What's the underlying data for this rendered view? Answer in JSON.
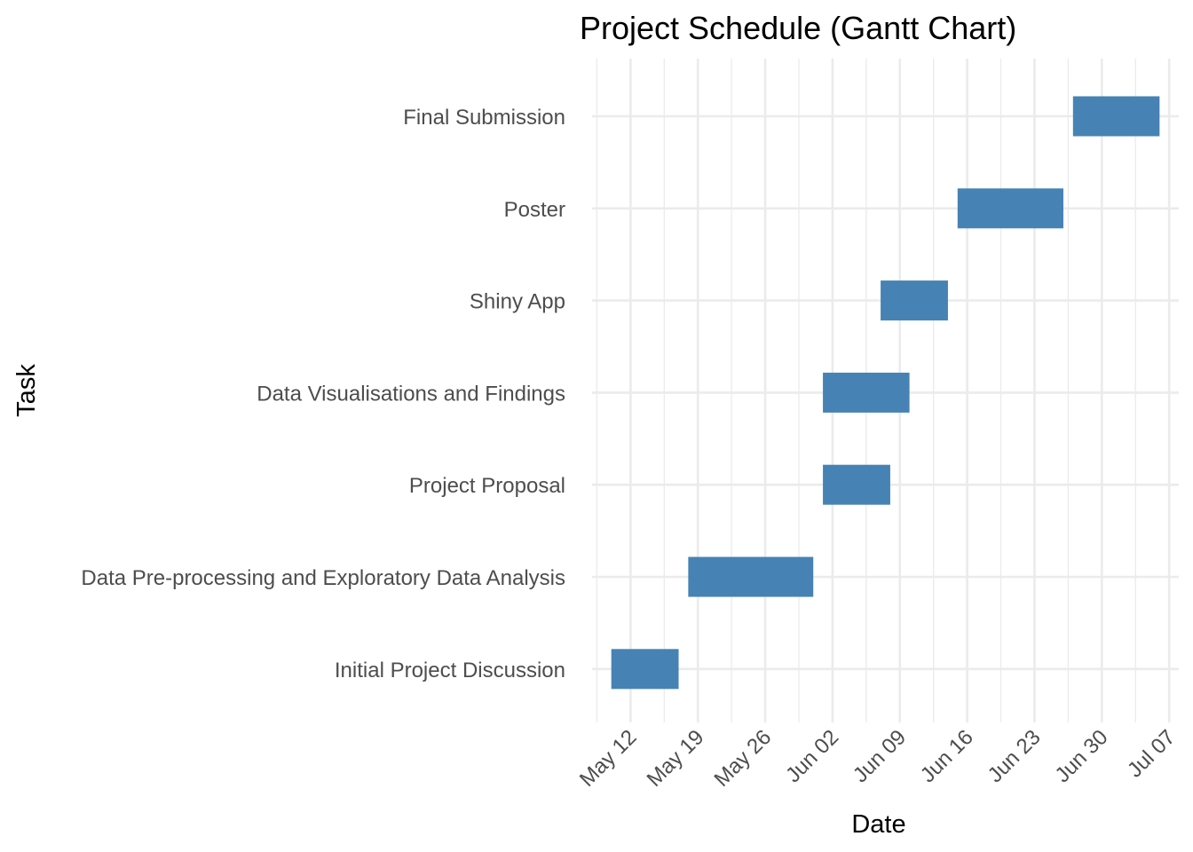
{
  "chart_data": {
    "type": "gantt",
    "title": "Project Schedule (Gantt Chart)",
    "xlabel": "Date",
    "ylabel": "Task",
    "x_axis_type": "date",
    "xlim": [
      "2024-05-08",
      "2024-07-08"
    ],
    "x_ticks": [
      {
        "date": "2024-05-12",
        "label": "May 12"
      },
      {
        "date": "2024-05-19",
        "label": "May 19"
      },
      {
        "date": "2024-05-26",
        "label": "May 26"
      },
      {
        "date": "2024-06-02",
        "label": "Jun 02"
      },
      {
        "date": "2024-06-09",
        "label": "Jun 09"
      },
      {
        "date": "2024-06-16",
        "label": "Jun 16"
      },
      {
        "date": "2024-06-23",
        "label": "Jun 23"
      },
      {
        "date": "2024-06-30",
        "label": "Jun 30"
      },
      {
        "date": "2024-07-07",
        "label": "Jul 07"
      }
    ],
    "tasks": [
      {
        "name": "Final Submission",
        "start": "2024-06-27",
        "end": "2024-07-06"
      },
      {
        "name": "Poster",
        "start": "2024-06-15",
        "end": "2024-06-26"
      },
      {
        "name": "Shiny App",
        "start": "2024-06-07",
        "end": "2024-06-14"
      },
      {
        "name": "Data Visualisations and Findings",
        "start": "2024-06-01",
        "end": "2024-06-10"
      },
      {
        "name": "Project Proposal",
        "start": "2024-06-01",
        "end": "2024-06-08"
      },
      {
        "name": "Data Pre-processing and Exploratory Data Analysis",
        "start": "2024-05-18",
        "end": "2024-05-31"
      },
      {
        "name": "Initial Project Discussion",
        "start": "2024-05-10",
        "end": "2024-05-17"
      }
    ],
    "bar_color": "#4682b4",
    "grid": true,
    "legend": "none"
  }
}
